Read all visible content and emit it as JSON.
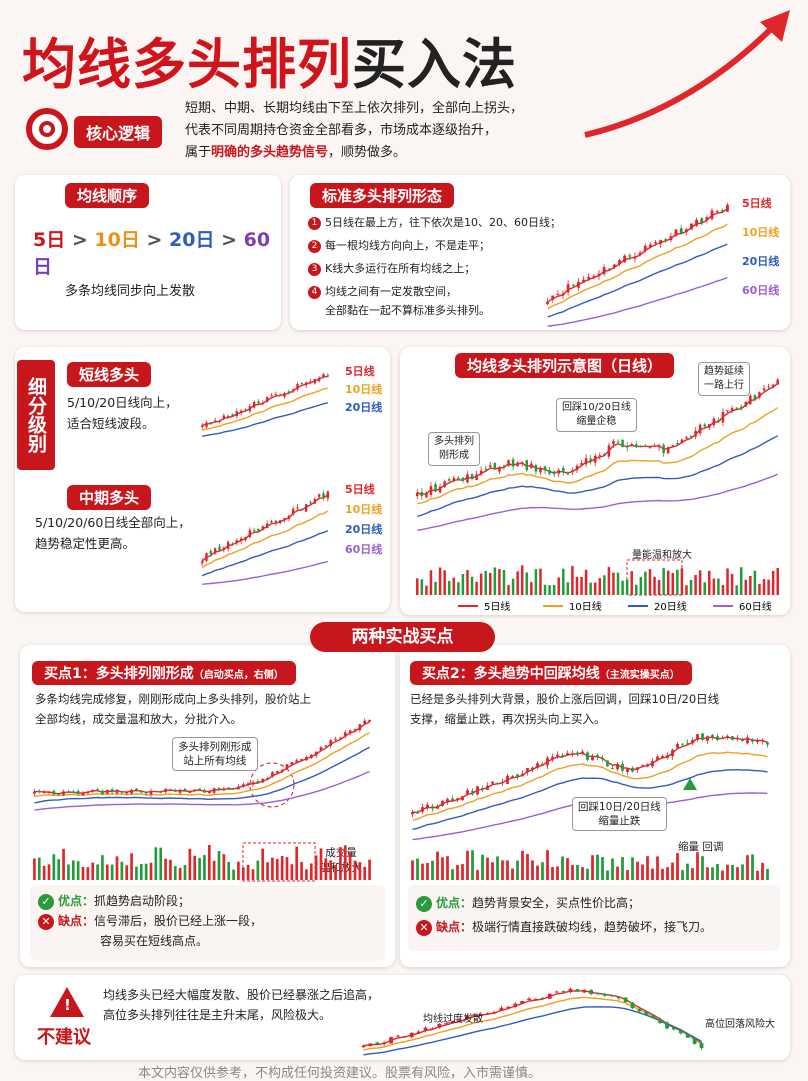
{
  "header": {
    "title_main": "均线多头排列",
    "title_tail": "买入法",
    "badge": "核心逻辑",
    "desc": [
      "短期、中期、长期均线由下至上依次排列，全部向上拐头，",
      "代表不同周期持仓资金全部看多，市场成本逐级抬升，"
    ],
    "desc3_pre": "属于",
    "desc3_em": "明确的多头趋势信号",
    "desc3_post": "，顺势做多。"
  },
  "order": {
    "title": "均线顺序",
    "items": [
      "5日",
      "10日",
      "20日",
      "60日"
    ],
    "sep": ">",
    "caption": "多条均线同步向上发散"
  },
  "pattern": {
    "title": "标准多头排列形态",
    "nums": [
      "1",
      "2",
      "3",
      "4"
    ],
    "points": [
      "5日线在最上方，往下依次是10、20、60日线；",
      "每一根均线方向向上，不是走平；",
      "K线大多运行在所有均线之上；",
      "均线之间有一定发散空间，"
    ],
    "point4_cont": "全部黏在一起不算标准多头排列。",
    "legend": [
      "5日线",
      "10日线",
      "20日线",
      "60日线"
    ]
  },
  "subdivide": {
    "label": "细分级别",
    "short": {
      "title": "短线多头",
      "desc": [
        "5/10/20日线向上，",
        "适合短线波段。"
      ]
    },
    "mid": {
      "title": "中期多头",
      "desc": [
        "5/10/20/60日线全部向上，",
        "趋势稳定性更高。"
      ]
    }
  },
  "diagram": {
    "title": "均线多头排列示意图（日线）",
    "ann1": [
      "多头排列",
      "刚形成"
    ],
    "ann2": [
      "回踩10/20日线",
      "缩量企稳"
    ],
    "ann3": [
      "趋势延续",
      "一路上行"
    ],
    "volume_label": "量能温和放大"
  },
  "section": "两种实战买点",
  "buy1": {
    "title": "买点1：多头排列刚形成",
    "tag": "（启动买点，右侧）",
    "desc": [
      "多条均线完成修复，刚刚形成向上多头排列，股价站上",
      "全部均线，成交量温和放大，分批介入。"
    ],
    "callout": [
      "多头排列刚形成",
      "站上所有均线"
    ],
    "vol": [
      "成交量",
      "温和放大"
    ],
    "pro_label": "优点：",
    "pro": [
      "抓趋势启动阶段；"
    ],
    "con_label": "缺点：",
    "con": [
      "信号滞后，股价已经上涨一段，",
      "容易买在短线高点。"
    ]
  },
  "buy2": {
    "title": "买点2：多头趋势中回踩均线",
    "tag": "（主流实操买点）",
    "desc": [
      "已经是多头排列大背景，股价上涨后回调，回踩10日/20日线",
      "支撑，缩量止跌，再次拐头向上买入。"
    ],
    "callout": [
      "回踩10日/20日线",
      "缩量止跌"
    ],
    "vol": [
      "缩量 回调"
    ],
    "pro_label": "优点：",
    "pro": [
      "趋势背景安全，买点性价比高；"
    ],
    "con_label": "缺点：",
    "con": [
      "极端行情直接跌破均线，趋势破坏，接飞刀。"
    ]
  },
  "warn": {
    "label": "不建议",
    "text": [
      "均线多头已经大幅度发散、股价已经暴涨之后追高，",
      "高位多头排列往往是主升末尾，风险极大。"
    ],
    "ann1": "均线过度发散",
    "ann2": "高位回落风险大"
  },
  "footer": "本文内容仅供参考，不构成任何投资建议。股票有风险，入市需谨慎。"
}
